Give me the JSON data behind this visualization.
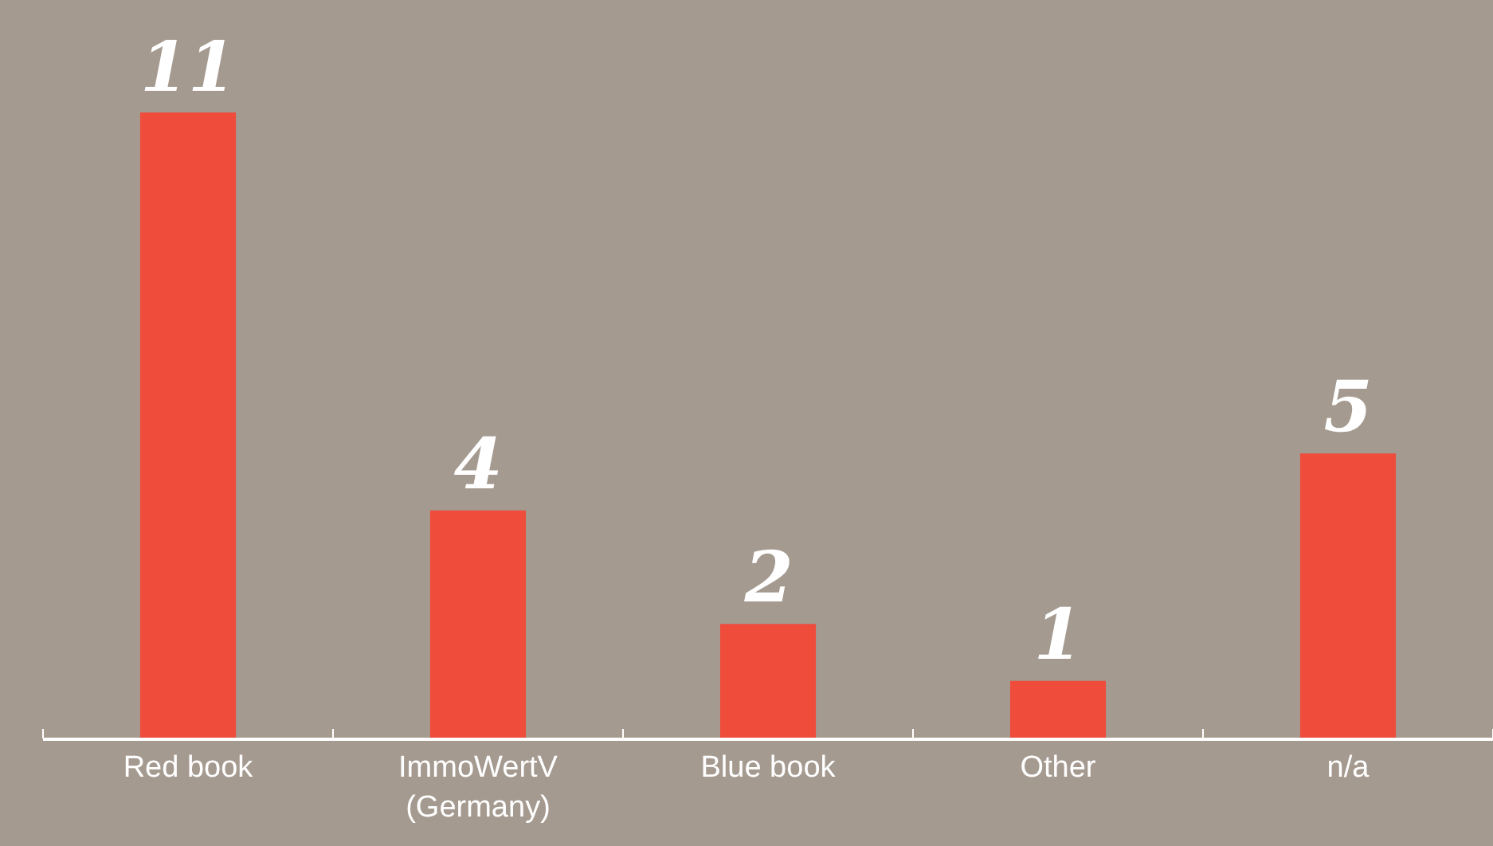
{
  "chart_data": {
    "type": "bar",
    "categories": [
      "Red book",
      "ImmoWertV\n(Germany)",
      "Blue book",
      "Other",
      "n/a"
    ],
    "values": [
      11,
      4,
      2,
      1,
      5
    ],
    "color": "#ef4c3c",
    "data_labels": true,
    "grid": false,
    "legend": false
  }
}
